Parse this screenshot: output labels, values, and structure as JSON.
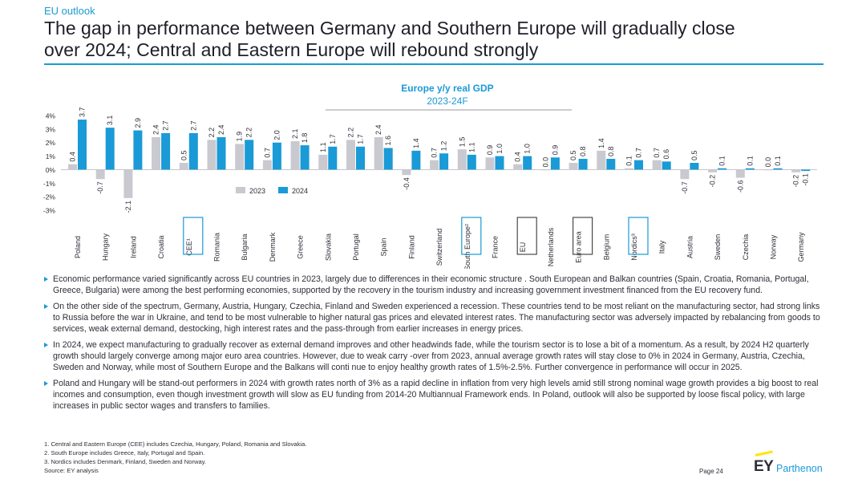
{
  "header": {
    "section_label": "EU outlook",
    "title_line1": "The gap in performance between Germany and Southern Europe will gradually close",
    "title_line2": "over 2024; Central and Eastern Europe will rebound strongly"
  },
  "colors": {
    "accent": "#1a9ad6",
    "series_2023": "#c9c9d0",
    "series_2024": "#1a9ad6",
    "highlight_blue": "#1a9ad6",
    "highlight_gray": "#4a4a4a"
  },
  "chart_data": {
    "type": "bar",
    "title": "Europe y/y real GDP",
    "subtitle": "2023-24F",
    "ylim": [
      -3,
      4
    ],
    "yticks": [
      "4%",
      "3%",
      "2%",
      "1%",
      "0%",
      "-1%",
      "-2%",
      "-3%"
    ],
    "categories": [
      "Poland",
      "Hungary",
      "Ireland",
      "Croatia",
      "CEE¹",
      "Romania",
      "Bulgaria",
      "Denmark",
      "Greece",
      "Slovakia",
      "Portugal",
      "Spain",
      "Finland",
      "Switzerland",
      "South Europe²",
      "France",
      "EU",
      "Netherlands",
      "Euro area",
      "Belgium",
      "Nordics³",
      "Italy",
      "Austria",
      "Sweden",
      "Czechia",
      "Norway",
      "Germany"
    ],
    "highlighted": {
      "CEE¹": "blue",
      "South Europe²": "blue",
      "Nordics³": "blue",
      "EU": "gray",
      "Euro area": "gray"
    },
    "series": [
      {
        "name": "2023",
        "values": [
          0.4,
          -0.7,
          -2.1,
          2.4,
          0.5,
          2.2,
          1.9,
          0.7,
          2.1,
          1.1,
          2.2,
          2.4,
          -0.4,
          0.7,
          1.5,
          0.9,
          0.4,
          0.0,
          0.5,
          1.4,
          0.1,
          0.7,
          -0.7,
          -0.2,
          -0.6,
          0.0,
          -0.2
        ]
      },
      {
        "name": "2024",
        "values": [
          3.7,
          3.1,
          2.9,
          2.7,
          2.7,
          2.4,
          2.2,
          2.0,
          1.8,
          1.7,
          1.7,
          1.6,
          1.4,
          1.2,
          1.1,
          1.0,
          1.0,
          0.9,
          0.8,
          0.8,
          0.7,
          0.6,
          0.5,
          0.1,
          0.1,
          0.1,
          -0.1
        ]
      }
    ],
    "labels": {
      "2023": [
        "0.4",
        "-0.7",
        "-2.1",
        "2.4",
        "0.5",
        "2.2",
        "1.9",
        "0.7",
        "2.1",
        "1.1",
        "2.2",
        "2.4",
        "-0.4",
        "0.7",
        "1.5",
        "0.9",
        "0.4",
        "0.0",
        "0.5",
        "1.4",
        "0.1",
        "0.7",
        "-0.7",
        "-0.2",
        "-0.6",
        "0.0",
        "-0.2"
      ],
      "2024": [
        "3.7",
        "3.1",
        "2.9",
        "2.7",
        "2.7",
        "2.4",
        "2.2",
        "2.0",
        "1.8",
        "1.7",
        "1.7",
        "1.6",
        "1.4",
        "1.2",
        "1.1",
        "1.0",
        "1.0",
        "0.9",
        "0.8",
        "0.8",
        "0.7",
        "0.6",
        "0.5",
        "0.1",
        "0.1",
        "0.1",
        "-0.1"
      ]
    },
    "legend": {
      "entries": [
        "2023",
        "2024"
      ],
      "placement": "lower-left"
    }
  },
  "bullets": [
    "Economic performance varied significantly across EU countries in 2023, largely due to differences in their economic structure . South European and Balkan countries (Spain, Croatia, Romania, Portugal, Greece, Bulgaria) were among the best performing economies, supported by the recovery in the tourism industry and increasing government investment financed from the EU recovery fund.",
    "On the other side of the spectrum, Germany, Austria, Hungary, Czechia, Finland and Sweden experienced a recession. These countries tend to be most reliant on the manufacturing sector, had strong links to Russia before the war in Ukraine, and tend to be most vulnerable to higher natural gas prices and elevated interest rates. The manufacturing sector was adversely impacted by rebalancing from goods to services, weak external demand, destocking, high interest rates and the pass-through from earlier increases in energy prices.",
    "In 2024, we expect manufacturing to gradually recover as external demand improves and other headwinds fade, while the tourism sector is to lose a bit of a momentum. As a result, by 2024 H2 quarterly growth should largely converge among major euro area countries. However, due to weak carry -over from 2023, annual average growth rates will stay close to 0% in 2024 in Germany, Austria, Czechia, Sweden and Norway, while most of Southern Europe and the Balkans will conti nue to enjoy healthy growth rates of 1.5%-2.5%. Further convergence in performance will occur in 2025.",
    "Poland and Hungary will be stand-out performers in 2024 with growth rates north of 3% as a rapid decline in inflation from very  high levels amid still strong nominal wage growth provides a big boost to real incomes and consumption, even though investment growth will slow as EU funding from 2014-20 Multiannual Framework ends. In Poland, outlook will also be supported by loose fiscal policy, with large increases in public sector wages and transfers to families."
  ],
  "footnotes": [
    "1.   Central and Eastern Europe (CEE) includes  Czechia,  Hungary,  Poland,  Romania  and  Slovakia.",
    "2.   South Europe includes  Greece,  Italy,  Portugal  and  Spain.",
    "3.   Nordics includes  Denmark,  Finland,  Sweden  and  Norway.",
    "Source:  EY analysis"
  ],
  "footer": {
    "page": "Page 24",
    "logo_main": "EY",
    "logo_sub": "Parthenon"
  }
}
